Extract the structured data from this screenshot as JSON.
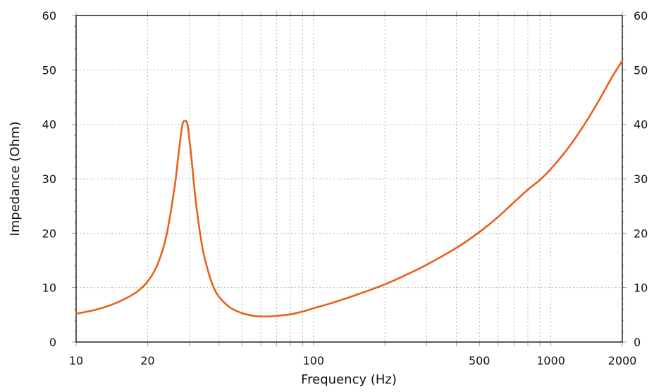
{
  "chart_data": {
    "type": "line",
    "title": "",
    "xlabel": "Frequency (Hz)",
    "ylabel": "Impedance (Ohm)",
    "xscale": "log",
    "xlim": [
      10,
      2000
    ],
    "ylim": [
      0,
      60
    ],
    "grid": true,
    "legend": null,
    "x_ticks": [
      10,
      20,
      100,
      500,
      1000,
      2000
    ],
    "x_tick_labels": [
      "10",
      "20",
      "100",
      "500",
      "1000",
      "2000"
    ],
    "y_ticks": [
      0,
      10,
      20,
      30,
      40,
      50,
      60
    ],
    "y_tick_labels": [
      "0",
      "10",
      "20",
      "30",
      "40",
      "50",
      "60"
    ],
    "right_y_axis_labels": [
      "0",
      "10",
      "20",
      "30",
      "40",
      "50",
      "60"
    ],
    "series": [
      {
        "name": "Impedance",
        "color": "#e8601c",
        "x": [
          10,
          12,
          14,
          16,
          18,
          20,
          22,
          24,
          26,
          27,
          28,
          28.8,
          29.5,
          30.5,
          32,
          34,
          36,
          38,
          40,
          44,
          48,
          52,
          56,
          60,
          65,
          70,
          80,
          90,
          100,
          120,
          150,
          200,
          250,
          300,
          400,
          500,
          600,
          700,
          800,
          900,
          1000,
          1200,
          1400,
          1600,
          1800,
          2000
        ],
        "values": [
          5.2,
          5.9,
          6.8,
          7.9,
          9.2,
          11.1,
          14.2,
          19.5,
          28.5,
          34.5,
          39.8,
          40.6,
          39.8,
          34.5,
          25.5,
          17.5,
          13.0,
          10.0,
          8.3,
          6.5,
          5.6,
          5.1,
          4.8,
          4.7,
          4.7,
          4.8,
          5.1,
          5.6,
          6.2,
          7.2,
          8.6,
          10.6,
          12.5,
          14.2,
          17.3,
          20.2,
          23.0,
          25.7,
          28.0,
          29.8,
          31.8,
          36.0,
          40.3,
          44.5,
          48.5,
          51.7
        ]
      }
    ]
  }
}
